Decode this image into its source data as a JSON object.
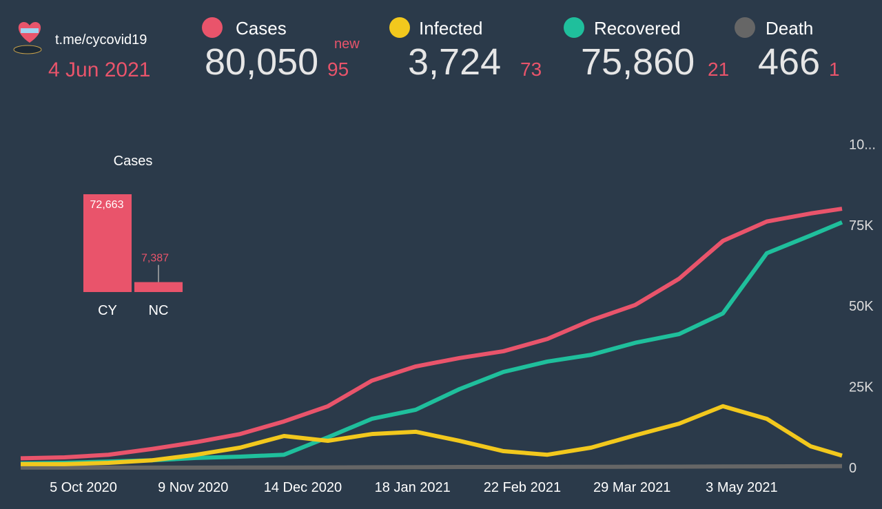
{
  "header": {
    "link": "t.me/cycovid19",
    "date": "4 Jun 2021",
    "new_label": "new",
    "stats": [
      {
        "name": "Cases",
        "color": "#e9546b",
        "value": "80,050",
        "new": "95"
      },
      {
        "name": "Infected",
        "color": "#f2c81d",
        "value": "3,724",
        "new": "73"
      },
      {
        "name": "Recovered",
        "color": "#1fbf9c",
        "value": "75,860",
        "new": "21"
      },
      {
        "name": "Death",
        "color": "#666666",
        "value": "466",
        "new": "1"
      }
    ]
  },
  "chart_data": [
    {
      "type": "line",
      "x": [
        "2020-09-15",
        "2020-09-29",
        "2020-10-13",
        "2020-10-27",
        "2020-11-10",
        "2020-11-24",
        "2020-12-08",
        "2020-12-22",
        "2021-01-05",
        "2021-01-19",
        "2021-02-02",
        "2021-02-16",
        "2021-03-02",
        "2021-03-16",
        "2021-03-30",
        "2021-04-13",
        "2021-04-27",
        "2021-05-11",
        "2021-05-25",
        "2021-06-04"
      ],
      "xlim": [
        "2020-09-15",
        "2021-06-04"
      ],
      "xticks": [
        {
          "value": "2020-10-05",
          "label": "5 Oct 2020"
        },
        {
          "value": "2020-11-09",
          "label": "9 Nov 2020"
        },
        {
          "value": "2020-12-14",
          "label": "14 Dec 2020"
        },
        {
          "value": "2021-01-18",
          "label": "18 Jan 2021"
        },
        {
          "value": "2021-02-22",
          "label": "22 Feb 2021"
        },
        {
          "value": "2021-03-29",
          "label": "29 Mar 2021"
        },
        {
          "value": "2021-05-03",
          "label": "3 May 2021"
        }
      ],
      "ylim": [
        0,
        102000
      ],
      "yticks": [
        0,
        {
          "value": 25000,
          "label": "25K"
        },
        {
          "value": 50000,
          "label": "50K"
        },
        {
          "value": 75000,
          "label": "75K"
        },
        {
          "value": 100000,
          "label": "10..."
        }
      ],
      "grid": false,
      "series": [
        {
          "name": "Death",
          "color": "#666666",
          "values": [
            21,
            22,
            24,
            28,
            30,
            40,
            60,
            90,
            120,
            160,
            200,
            220,
            240,
            260,
            290,
            330,
            370,
            410,
            440,
            466
          ]
        },
        {
          "name": "Recovered",
          "color": "#1fbf9c",
          "values": [
            1300,
            1500,
            1900,
            2300,
            3000,
            3400,
            4000,
            9400,
            15100,
            17900,
            24300,
            29600,
            32800,
            34900,
            38600,
            41300,
            47700,
            66300,
            71800,
            75860
          ]
        },
        {
          "name": "Infected",
          "color": "#f2c81d",
          "values": [
            1100,
            1100,
            1500,
            2300,
            4000,
            6200,
            9800,
            8300,
            10400,
            11100,
            8300,
            5100,
            4000,
            6200,
            10000,
            13600,
            19000,
            15100,
            6600,
            3724
          ]
        },
        {
          "name": "Cases",
          "color": "#e9546b",
          "values": [
            2900,
            3200,
            4000,
            5800,
            7900,
            10400,
            14300,
            19000,
            26900,
            31300,
            33900,
            36000,
            39800,
            45600,
            50300,
            58400,
            70100,
            76100,
            78600,
            80050
          ]
        }
      ]
    },
    {
      "type": "bar",
      "title": "Cases",
      "categories": [
        "CY",
        "NC"
      ],
      "values": [
        72663,
        7387
      ],
      "value_labels": [
        "72,663",
        "7,387"
      ],
      "color": "#e9546b"
    }
  ]
}
